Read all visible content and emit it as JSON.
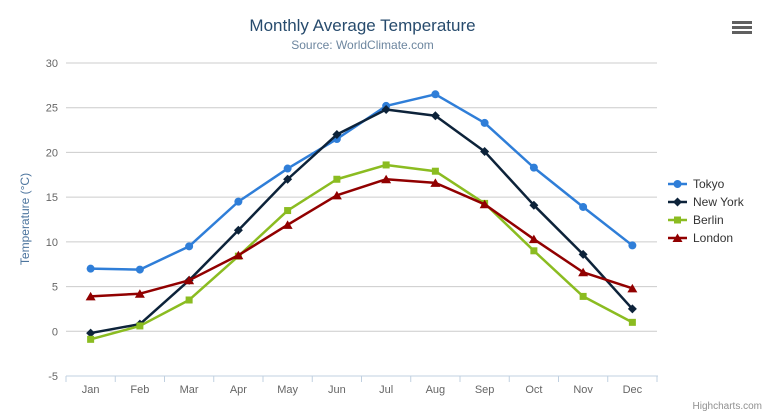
{
  "chart_data": {
    "type": "line",
    "title": "Monthly Average Temperature",
    "subtitle": "Source: WorldClimate.com",
    "categories": [
      "Jan",
      "Feb",
      "Mar",
      "Apr",
      "May",
      "Jun",
      "Jul",
      "Aug",
      "Sep",
      "Oct",
      "Nov",
      "Dec"
    ],
    "xlabel": "",
    "ylabel": "Temperature (°C)",
    "ylim": [
      -5,
      30
    ],
    "yticks": [
      30,
      25,
      20,
      15,
      10,
      5,
      0,
      -5
    ],
    "grid": true,
    "legend_position": "right",
    "series": [
      {
        "name": "Tokyo",
        "color": "#2f7ed8",
        "marker": "circle",
        "values": [
          7.0,
          6.9,
          9.5,
          14.5,
          18.2,
          21.5,
          25.2,
          26.5,
          23.3,
          18.3,
          13.9,
          9.6
        ]
      },
      {
        "name": "New York",
        "color": "#0d233a",
        "marker": "diamond",
        "values": [
          -0.2,
          0.8,
          5.7,
          11.3,
          17.0,
          22.0,
          24.8,
          24.1,
          20.1,
          14.1,
          8.6,
          2.5
        ]
      },
      {
        "name": "Berlin",
        "color": "#8bbc21",
        "marker": "square",
        "values": [
          -0.9,
          0.6,
          3.5,
          8.4,
          13.5,
          17.0,
          18.6,
          17.9,
          14.3,
          9.0,
          3.9,
          1.0
        ]
      },
      {
        "name": "London",
        "color": "#910000",
        "marker": "triangle",
        "values": [
          3.9,
          4.2,
          5.7,
          8.5,
          11.9,
          15.2,
          17.0,
          16.6,
          14.2,
          10.3,
          6.6,
          4.8
        ]
      }
    ],
    "credits": "Highcharts.com"
  },
  "colors": {
    "title": "#274b6d",
    "subtitle": "#6d869f",
    "axis_title": "#4d759e",
    "axis_labels": "#666666",
    "grid": "#cccccc",
    "axis_line": "#c0d0e0",
    "legend_text": "#333333",
    "credits": "#909090",
    "export_icon": "#606060"
  },
  "icons": {
    "export_menu": "hamburger-icon"
  }
}
